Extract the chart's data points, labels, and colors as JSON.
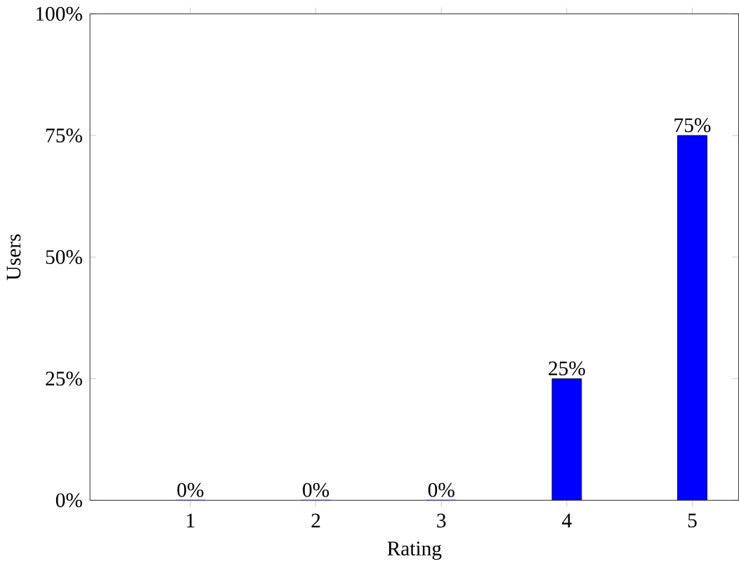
{
  "chart_data": {
    "type": "bar",
    "xlabel": "Rating",
    "ylabel": "Users",
    "categories": [
      "1",
      "2",
      "3",
      "4",
      "5"
    ],
    "values": [
      0,
      0,
      0,
      25,
      75
    ],
    "value_labels": [
      "0%",
      "0%",
      "0%",
      "25%",
      "75%"
    ],
    "color": "#0000ff",
    "ylim": [
      0,
      100
    ],
    "yticks": [
      {
        "value": 0,
        "label": "0%"
      },
      {
        "value": 25,
        "label": "25%"
      },
      {
        "value": 50,
        "label": "50%"
      },
      {
        "value": 75,
        "label": "75%"
      },
      {
        "value": 100,
        "label": "100%"
      }
    ]
  }
}
